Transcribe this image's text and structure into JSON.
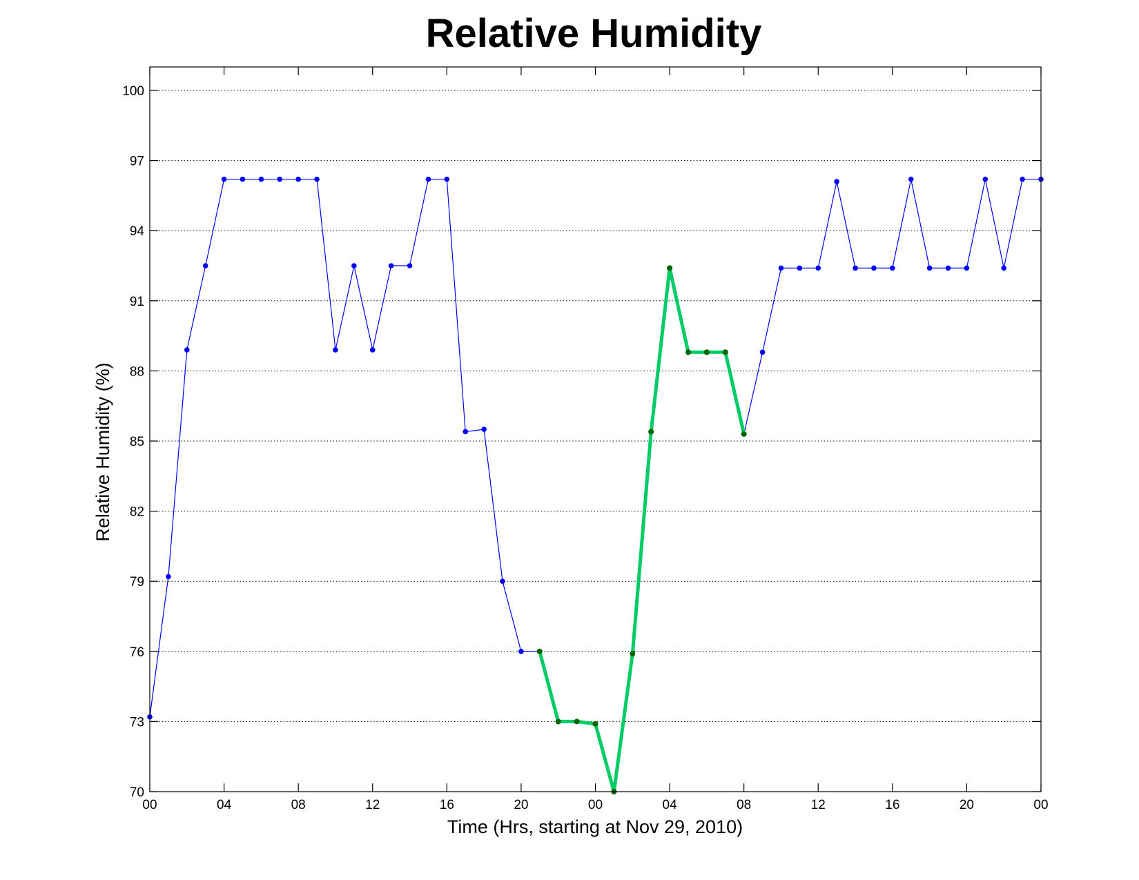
{
  "chart_data": {
    "type": "line",
    "title": "Relative Humidity",
    "xlabel": "Time (Hrs, starting at Nov 29, 2010)",
    "ylabel": "Relative Humidity (%)",
    "xlim": [
      0,
      48
    ],
    "ylim": [
      70,
      101
    ],
    "x_ticks": [
      0,
      4,
      8,
      12,
      16,
      20,
      24,
      28,
      32,
      36,
      40,
      44,
      48
    ],
    "x_tick_labels": [
      "00",
      "04",
      "08",
      "12",
      "16",
      "20",
      "00",
      "04",
      "08",
      "12",
      "16",
      "20",
      "00"
    ],
    "y_ticks": [
      70,
      73,
      76,
      79,
      82,
      85,
      88,
      91,
      94,
      97,
      100
    ],
    "y_tick_labels": [
      "70",
      "73",
      "76",
      "79",
      "82",
      "85",
      "88",
      "91",
      "94",
      "97",
      "100"
    ],
    "grid": "y-dotted",
    "series": [
      {
        "color": "#0000ff",
        "line_style": "thin",
        "x": [
          0,
          1,
          2,
          3,
          4,
          5,
          6,
          7,
          8,
          9,
          10,
          11,
          12,
          13,
          14,
          15,
          16,
          17,
          18,
          19,
          20,
          21,
          22,
          23,
          24,
          25,
          26,
          27,
          28,
          29,
          30,
          31,
          32,
          33,
          34,
          35,
          36,
          37,
          38,
          39,
          40,
          41,
          42,
          43,
          44,
          45,
          46,
          47,
          48
        ],
        "values": [
          73.2,
          79.2,
          88.9,
          92.5,
          96.2,
          96.2,
          96.2,
          96.2,
          96.2,
          96.2,
          88.9,
          92.5,
          88.9,
          92.5,
          92.5,
          96.2,
          96.2,
          85.4,
          85.5,
          79.0,
          76.0,
          76.0,
          73.0,
          73.0,
          72.9,
          70.0,
          75.9,
          85.4,
          92.4,
          88.8,
          88.8,
          88.8,
          85.3,
          88.8,
          92.4,
          92.4,
          92.4,
          96.1,
          92.4,
          92.4,
          92.4,
          96.2,
          92.4,
          92.4,
          92.4,
          96.2,
          92.4,
          96.2,
          96.2
        ]
      },
      {
        "color": "#00cc66",
        "marker_color": "#006600",
        "line_style": "thick",
        "x": [
          21,
          22,
          23,
          24,
          25,
          26,
          27,
          28,
          29,
          30,
          31,
          32
        ],
        "values": [
          76.0,
          73.0,
          73.0,
          72.9,
          70.0,
          75.9,
          85.4,
          92.4,
          88.8,
          88.8,
          88.8,
          85.3
        ]
      }
    ]
  }
}
